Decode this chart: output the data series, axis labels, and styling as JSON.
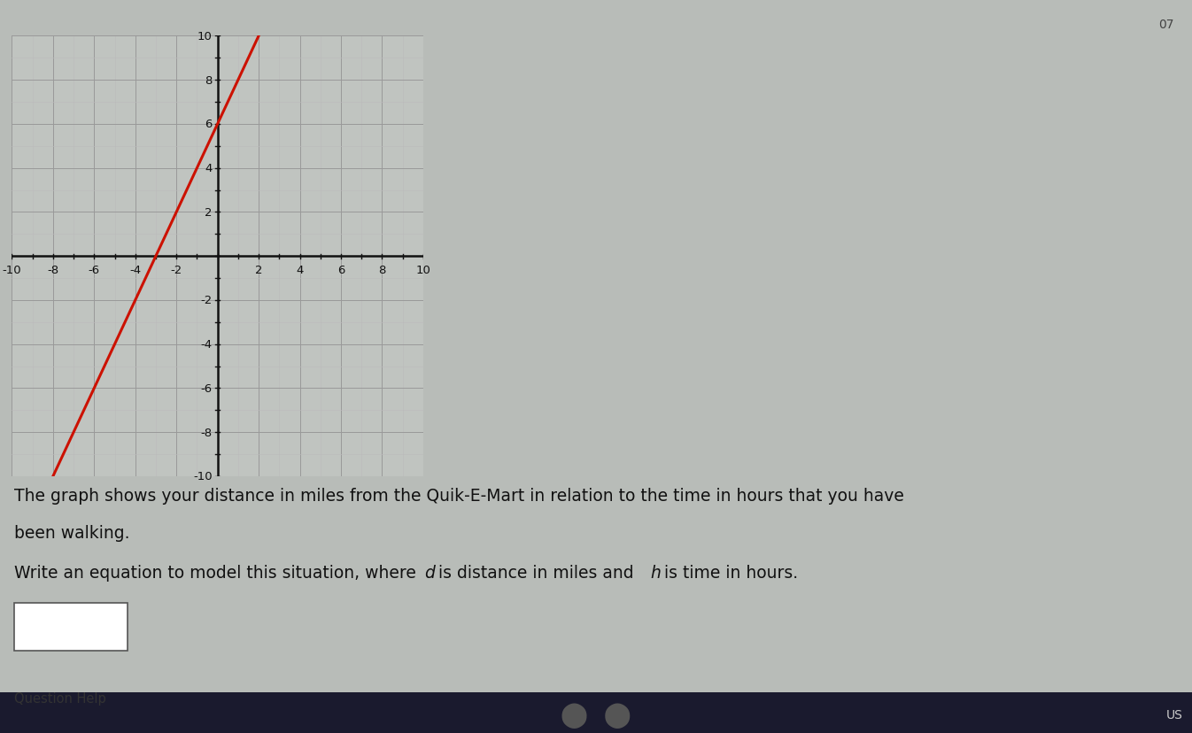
{
  "xlim": [
    -10,
    10
  ],
  "ylim": [
    -10,
    10
  ],
  "xtick_vals": [
    -10,
    -8,
    -6,
    -4,
    -2,
    2,
    4,
    6,
    8,
    10
  ],
  "ytick_vals": [
    -10,
    -8,
    -6,
    -4,
    -2,
    2,
    4,
    6,
    8,
    10
  ],
  "xtick_labels": [
    "-10",
    "-8",
    "-6",
    "-4",
    "-2",
    "2",
    "4",
    "6",
    "8",
    "10"
  ],
  "ytick_labels": [
    "-10",
    "-8",
    "-6",
    "-4",
    "-2",
    "2",
    "4",
    "6",
    "8",
    "10"
  ],
  "line_color": "#cc1100",
  "line_width": 2.2,
  "grid_color_major": "#999999",
  "grid_color_minor": "#bbbbbb",
  "bg_color": "#b8bcb8",
  "plot_bg_color": "#c0c4c0",
  "axis_color": "#111111",
  "slope": 2,
  "intercept": 6,
  "text1": "The graph shows your distance in miles from the Quik-E-Mart in relation to the time in hours that you have",
  "text2": "been walking.",
  "text3_before_d": "Write an equation to model this situation, where ",
  "text3_d": "d",
  "text3_mid": " is distance in miles and ",
  "text3_h": "h",
  "text3_end": " is time in hours.",
  "text_fontsize": 13.5,
  "text_color": "#111111"
}
